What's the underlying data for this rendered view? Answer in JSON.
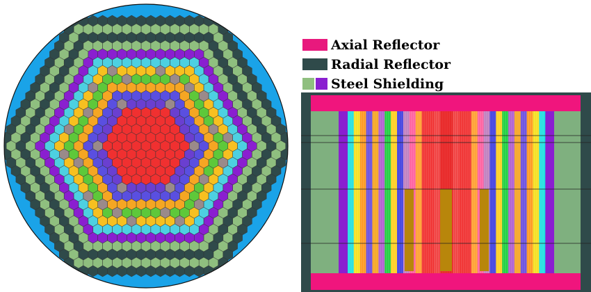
{
  "legend": [
    {
      "label": "Axial Reflector"
    },
    {
      "label": "Radial Reflector"
    },
    {
      "label": "Steel Shielding"
    }
  ]
}
